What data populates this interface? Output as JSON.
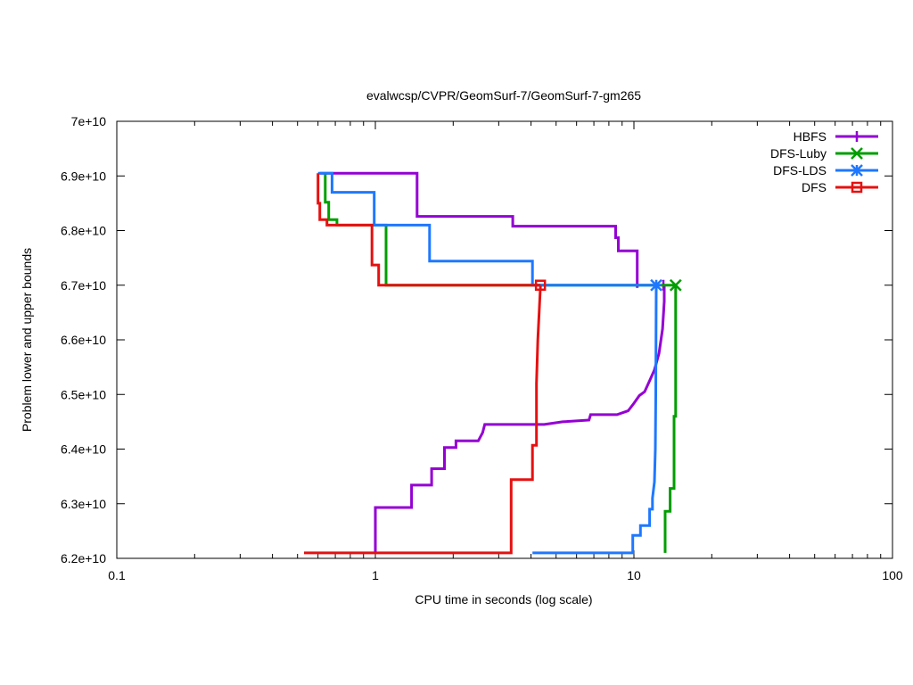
{
  "chart_data": {
    "type": "line",
    "title": "evalwcsp/CVPR/GeomSurf-7/GeomSurf-7-gm265",
    "xlabel": "CPU time in seconds (log scale)",
    "ylabel": "Problem lower and upper bounds",
    "xscale": "log",
    "xlim": [
      0.1,
      100
    ],
    "ylim": [
      62000000000,
      70000000000
    ],
    "x_tick_labels": [
      "0.1",
      "1",
      "10",
      "100"
    ],
    "y_tick_labels": [
      "6.2e+10",
      "6.3e+10",
      "6.4e+10",
      "6.5e+10",
      "6.6e+10",
      "6.7e+10",
      "6.8e+10",
      "6.9e+10",
      "7e+10"
    ],
    "grid": false,
    "legend_position": "top-right",
    "series": [
      {
        "name": "HBFS",
        "color": "#9400d3",
        "marker": "plus",
        "final_time": 13.0,
        "final_value": 67000000000,
        "upper": [
          [
            0.61,
            69050000000
          ],
          [
            1.45,
            69050000000
          ],
          [
            1.45,
            68260000000
          ],
          [
            3.4,
            68260000000
          ],
          [
            3.4,
            68080000000
          ],
          [
            8.5,
            68080000000
          ],
          [
            8.5,
            67870000000
          ],
          [
            8.7,
            67870000000
          ],
          [
            8.7,
            67630000000
          ],
          [
            10.3,
            67630000000
          ],
          [
            10.3,
            66950000000
          ]
        ],
        "lower": [
          [
            1.0,
            62100000000
          ],
          [
            1.0,
            62930000000
          ],
          [
            1.38,
            62930000000
          ],
          [
            1.38,
            63340000000
          ],
          [
            1.65,
            63340000000
          ],
          [
            1.65,
            63640000000
          ],
          [
            1.85,
            63640000000
          ],
          [
            1.85,
            64030000000
          ],
          [
            2.05,
            64030000000
          ],
          [
            2.05,
            64150000000
          ],
          [
            2.5,
            64150000000
          ],
          [
            2.6,
            64300000000
          ],
          [
            2.65,
            64450000000
          ],
          [
            4.5,
            64450000000
          ],
          [
            5.3,
            64500000000
          ],
          [
            6.7,
            64530000000
          ],
          [
            6.8,
            64630000000
          ],
          [
            8.6,
            64630000000
          ],
          [
            9.5,
            64700000000
          ],
          [
            10.0,
            64840000000
          ],
          [
            10.5,
            64980000000
          ],
          [
            11.0,
            65050000000
          ],
          [
            11.5,
            65250000000
          ],
          [
            12.0,
            65450000000
          ],
          [
            12.5,
            65750000000
          ],
          [
            12.9,
            66200000000
          ],
          [
            13.1,
            66700000000
          ],
          [
            13.1,
            67000000000
          ]
        ]
      },
      {
        "name": "DFS-Luby",
        "color": "#009e00",
        "marker": "x",
        "final_time": 14.5,
        "final_value": 67000000000,
        "upper": [
          [
            0.64,
            69050000000
          ],
          [
            0.64,
            68520000000
          ],
          [
            0.66,
            68520000000
          ],
          [
            0.66,
            68200000000
          ],
          [
            0.71,
            68200000000
          ],
          [
            0.71,
            68100000000
          ],
          [
            1.1,
            68100000000
          ],
          [
            1.1,
            67000000000
          ],
          [
            14.5,
            67000000000
          ]
        ],
        "lower": [
          [
            13.2,
            62100000000
          ],
          [
            13.2,
            62860000000
          ],
          [
            13.8,
            62860000000
          ],
          [
            13.8,
            63280000000
          ],
          [
            14.3,
            63280000000
          ],
          [
            14.3,
            64600000000
          ],
          [
            14.5,
            64600000000
          ],
          [
            14.5,
            67000000000
          ]
        ]
      },
      {
        "name": "DFS-LDS",
        "color": "#1e78ff",
        "marker": "star",
        "final_time": 12.2,
        "final_value": 67000000000,
        "upper": [
          [
            0.6,
            69050000000
          ],
          [
            0.68,
            69050000000
          ],
          [
            0.68,
            68700000000
          ],
          [
            0.99,
            68700000000
          ],
          [
            0.99,
            68100000000
          ],
          [
            1.62,
            68100000000
          ],
          [
            1.62,
            67440000000
          ],
          [
            4.05,
            67440000000
          ],
          [
            4.05,
            67000000000
          ],
          [
            12.2,
            67000000000
          ]
        ],
        "lower": [
          [
            4.05,
            62100000000
          ],
          [
            9.9,
            62100000000
          ],
          [
            9.9,
            62420000000
          ],
          [
            10.6,
            62420000000
          ],
          [
            10.6,
            62600000000
          ],
          [
            11.5,
            62600000000
          ],
          [
            11.5,
            62900000000
          ],
          [
            11.8,
            62900000000
          ],
          [
            11.8,
            63100000000
          ],
          [
            12.0,
            63400000000
          ],
          [
            12.1,
            64000000000
          ],
          [
            12.15,
            65000000000
          ],
          [
            12.2,
            67000000000
          ]
        ]
      },
      {
        "name": "DFS",
        "color": "#e51111",
        "marker": "square",
        "final_time": 4.35,
        "final_value": 67000000000,
        "upper": [
          [
            0.6,
            69050000000
          ],
          [
            0.6,
            68500000000
          ],
          [
            0.61,
            68500000000
          ],
          [
            0.61,
            68200000000
          ],
          [
            0.65,
            68200000000
          ],
          [
            0.65,
            68100000000
          ],
          [
            0.97,
            68100000000
          ],
          [
            0.97,
            67370000000
          ],
          [
            1.03,
            67370000000
          ],
          [
            1.03,
            67000000000
          ],
          [
            4.35,
            67000000000
          ]
        ],
        "lower": [
          [
            0.53,
            62100000000
          ],
          [
            3.35,
            62100000000
          ],
          [
            3.35,
            63440000000
          ],
          [
            4.05,
            63440000000
          ],
          [
            4.05,
            64070000000
          ],
          [
            4.2,
            64070000000
          ],
          [
            4.2,
            65200000000
          ],
          [
            4.25,
            66000000000
          ],
          [
            4.35,
            67000000000
          ]
        ]
      }
    ]
  }
}
